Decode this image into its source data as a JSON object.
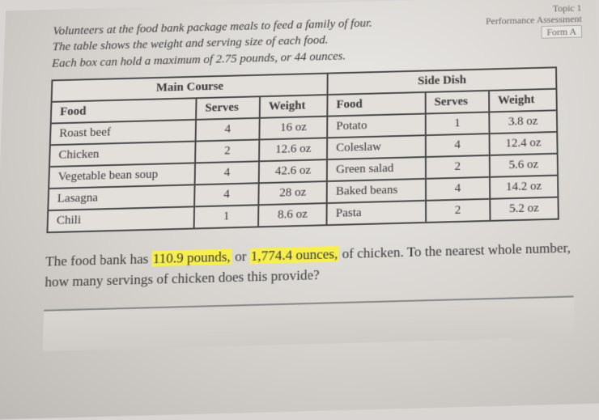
{
  "corner": {
    "line1": "Topic 1",
    "line2": "Performance Assessment",
    "tab": "Form A"
  },
  "intro": {
    "line1": "Volunteers at the food bank package meals to feed a family of four.",
    "line2": "The table shows the weight and serving size of each food.",
    "line3": "Each box can hold a maximum of 2.75 pounds, or 44 ounces."
  },
  "table": {
    "group_main": "Main Course",
    "group_side": "Side Dish",
    "col_food": "Food",
    "col_serves": "Serves",
    "col_weight": "Weight",
    "main_rows": [
      {
        "food": "Roast beef",
        "serves": "4",
        "weight": "16 oz"
      },
      {
        "food": "Chicken",
        "serves": "2",
        "weight": "12.6 oz"
      },
      {
        "food": "Vegetable bean soup",
        "serves": "4",
        "weight": "42.6 oz"
      },
      {
        "food": "Lasagna",
        "serves": "4",
        "weight": "28 oz"
      },
      {
        "food": "Chili",
        "serves": "1",
        "weight": "8.6 oz"
      }
    ],
    "side_rows": [
      {
        "food": "Potato",
        "serves": "1",
        "weight": "3.8 oz"
      },
      {
        "food": "Coleslaw",
        "serves": "4",
        "weight": "12.4 oz"
      },
      {
        "food": "Green salad",
        "serves": "2",
        "weight": "5.6 oz"
      },
      {
        "food": "Baked beans",
        "serves": "4",
        "weight": "14.2 oz"
      },
      {
        "food": "Pasta",
        "serves": "2",
        "weight": "5.2 oz"
      }
    ]
  },
  "question": {
    "pre": "The food bank has ",
    "hl1": "110.9 pounds,",
    "mid": " or ",
    "hl2": "1,774.4 ounces,",
    "post": " of chicken. To the nearest whole number, how many servings of chicken does this provide?"
  },
  "colors": {
    "highlight": "#f7ef4d",
    "background_light": "#eceae6",
    "background_dark": "#bdbab6",
    "border": "#4a4a4a",
    "text": "#3a3a3a"
  }
}
